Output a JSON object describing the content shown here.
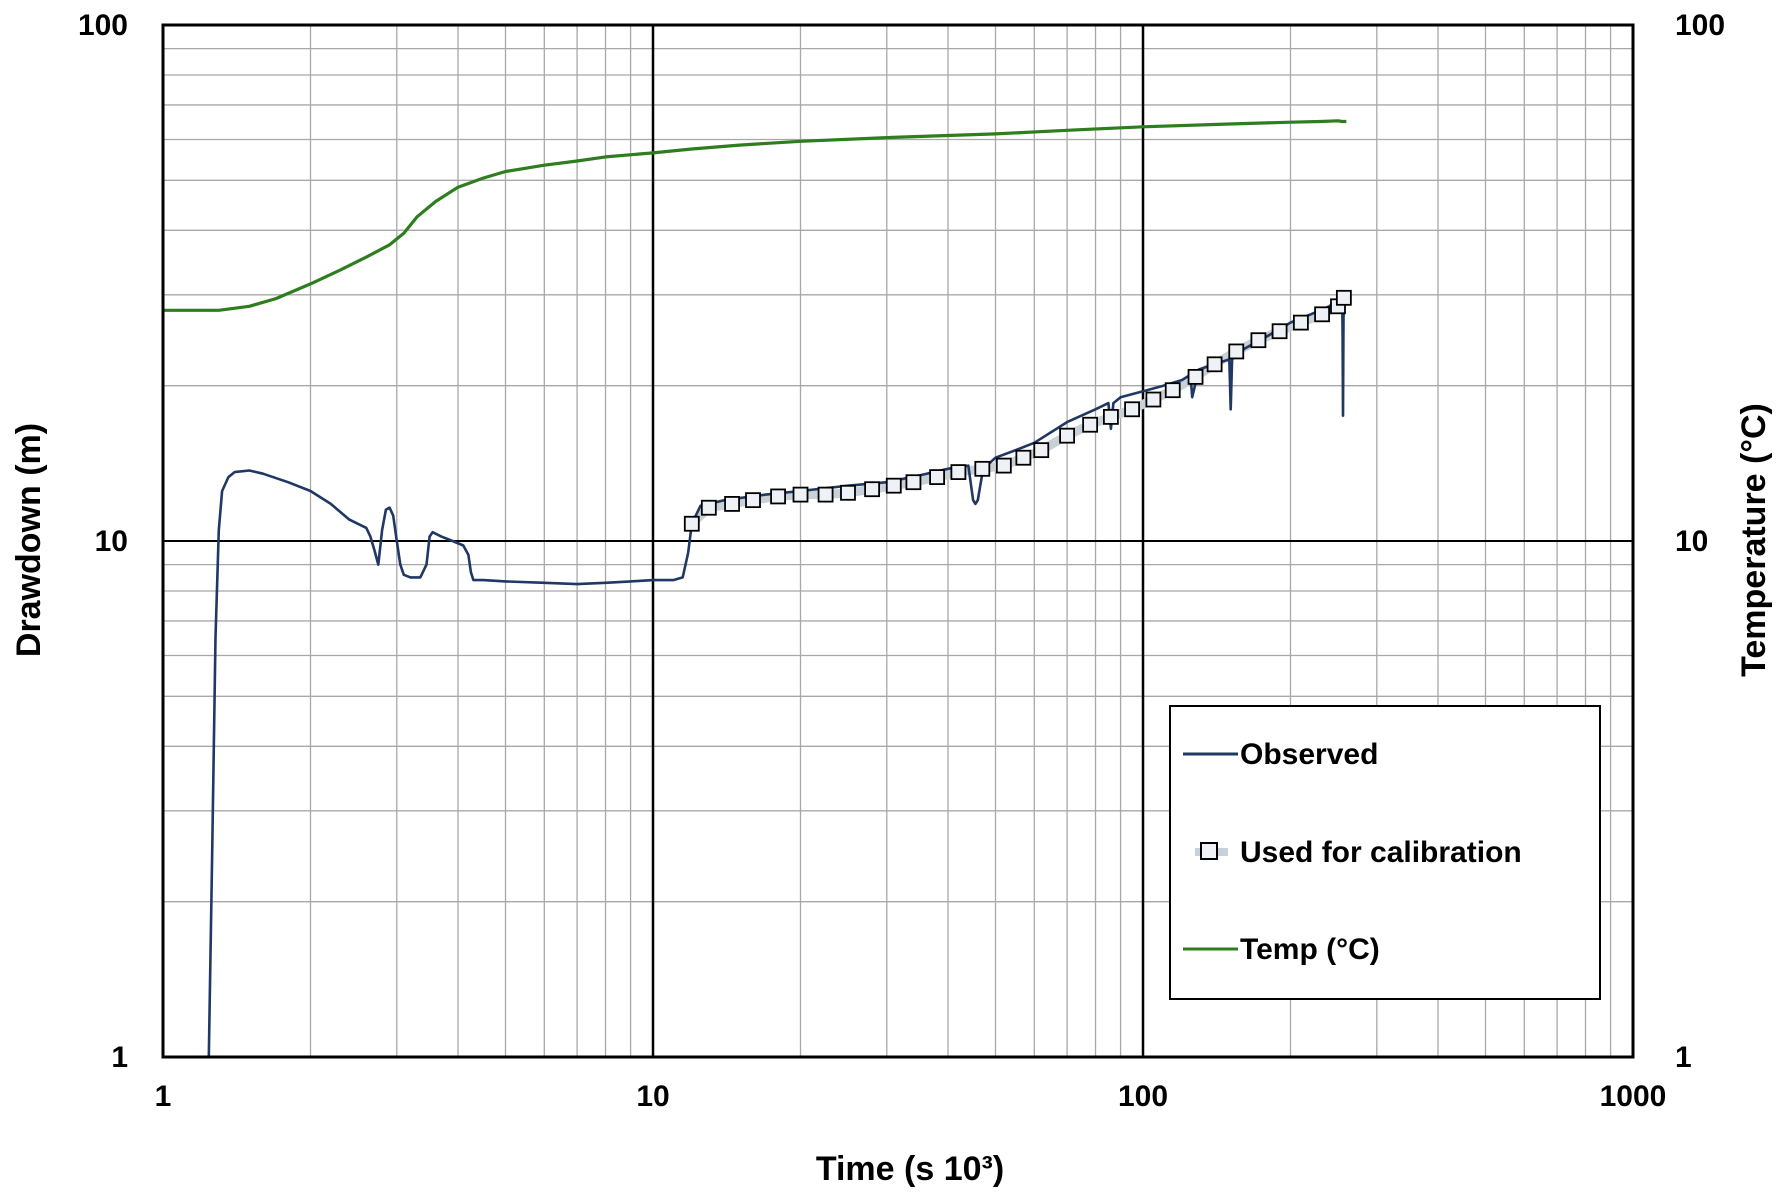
{
  "chart_data": {
    "type": "line",
    "xlabel": "Time (s 10³)",
    "ylabel": "Drawdown (m)",
    "y2label": "Temperature (°C)",
    "x_scale": "log",
    "y_scale": "log",
    "y2_scale": "log",
    "xlim": [
      1,
      1000
    ],
    "ylim": [
      1,
      100
    ],
    "y2lim": [
      1,
      100
    ],
    "grid": true,
    "legend_position": "bottom-right",
    "x_tick_labels": [
      "1",
      "10",
      "100",
      "1000"
    ],
    "y_tick_labels": [
      "1",
      "10",
      "100"
    ],
    "y2_tick_labels": [
      "1",
      "10",
      "100"
    ],
    "series": [
      {
        "name": "Observed",
        "color": "#1f3864",
        "style": "line",
        "axis": "left",
        "x": [
          1.24,
          1.26,
          1.28,
          1.3,
          1.32,
          1.36,
          1.4,
          1.5,
          1.6,
          1.8,
          2.0,
          2.2,
          2.4,
          2.6,
          2.65,
          2.7,
          2.75,
          2.8,
          2.85,
          2.9,
          2.95,
          3.0,
          3.05,
          3.1,
          3.2,
          3.35,
          3.45,
          3.5,
          3.55,
          3.7,
          3.9,
          4.1,
          4.2,
          4.25,
          4.3,
          4.5,
          5,
          6,
          7,
          8,
          9,
          10,
          11,
          11.5,
          11.8,
          12,
          12.5,
          14,
          17,
          20,
          25,
          30,
          35,
          40,
          44,
          45,
          45.5,
          46,
          47,
          48,
          50,
          55,
          60,
          70,
          80,
          85,
          86,
          87,
          90,
          100,
          110,
          120,
          125,
          126,
          130,
          150,
          151,
          152,
          160,
          180,
          200,
          220,
          240,
          250,
          255,
          255.5,
          256,
          256.5,
          257
        ],
        "y": [
          1.0,
          2.5,
          6.5,
          10.5,
          12.5,
          13.3,
          13.6,
          13.7,
          13.5,
          13.0,
          12.5,
          11.8,
          11.0,
          10.6,
          10.2,
          9.6,
          9.0,
          10.5,
          11.5,
          11.6,
          11.2,
          10.0,
          9.0,
          8.6,
          8.5,
          8.5,
          9.0,
          10.2,
          10.4,
          10.2,
          10.0,
          9.8,
          9.4,
          8.7,
          8.4,
          8.4,
          8.35,
          8.3,
          8.25,
          8.3,
          8.35,
          8.4,
          8.4,
          8.5,
          9.5,
          10.8,
          11.7,
          12.0,
          12.3,
          12.5,
          12.8,
          13.0,
          13.4,
          13.8,
          14.0,
          12.0,
          11.8,
          12.0,
          13.5,
          14.0,
          14.5,
          15.0,
          15.5,
          17.0,
          18.0,
          18.5,
          16.5,
          18.5,
          19.0,
          19.5,
          20.0,
          20.5,
          21.0,
          19.0,
          21.5,
          22.5,
          18.0,
          22.5,
          23.5,
          25.0,
          26.5,
          27.5,
          28.5,
          29.5,
          30.0,
          25.0,
          17.5,
          27.0,
          29.0
        ]
      },
      {
        "name": "Used for calibration",
        "color": "#c8d0d8",
        "marker_edge": "#000000",
        "style": "square-markers",
        "axis": "left",
        "x": [
          12,
          13,
          14.5,
          16,
          18,
          20,
          22.5,
          25,
          28,
          31,
          34,
          38,
          42,
          47,
          52,
          57,
          62,
          70,
          78,
          86,
          95,
          105,
          115,
          128,
          140,
          155,
          172,
          190,
          210,
          232,
          250,
          257
        ],
        "y": [
          10.8,
          11.6,
          11.8,
          12.0,
          12.2,
          12.3,
          12.3,
          12.4,
          12.6,
          12.8,
          13.0,
          13.3,
          13.6,
          13.8,
          14.0,
          14.5,
          15.0,
          16.0,
          16.8,
          17.4,
          18.0,
          18.8,
          19.6,
          20.8,
          22.0,
          23.3,
          24.5,
          25.5,
          26.5,
          27.5,
          28.5,
          29.6
        ]
      },
      {
        "name": "Temp (°C)",
        "color": "#2e7d1e",
        "style": "line",
        "axis": "right",
        "x": [
          1,
          1.2,
          1.3,
          1.5,
          1.7,
          2.0,
          2.3,
          2.6,
          2.9,
          3.1,
          3.3,
          3.6,
          4.0,
          4.5,
          5,
          6,
          7,
          8,
          10,
          12,
          15,
          20,
          30,
          50,
          70,
          100,
          150,
          200,
          230,
          250,
          255,
          260
        ],
        "y": [
          28.0,
          28.0,
          28.0,
          28.5,
          29.5,
          31.5,
          33.5,
          35.5,
          37.5,
          39.5,
          42.5,
          45.5,
          48.5,
          50.5,
          52.0,
          53.5,
          54.5,
          55.5,
          56.5,
          57.5,
          58.5,
          59.5,
          60.5,
          61.5,
          62.5,
          63.5,
          64.3,
          64.8,
          65.0,
          65.2,
          65.0,
          65.0
        ]
      }
    ]
  }
}
